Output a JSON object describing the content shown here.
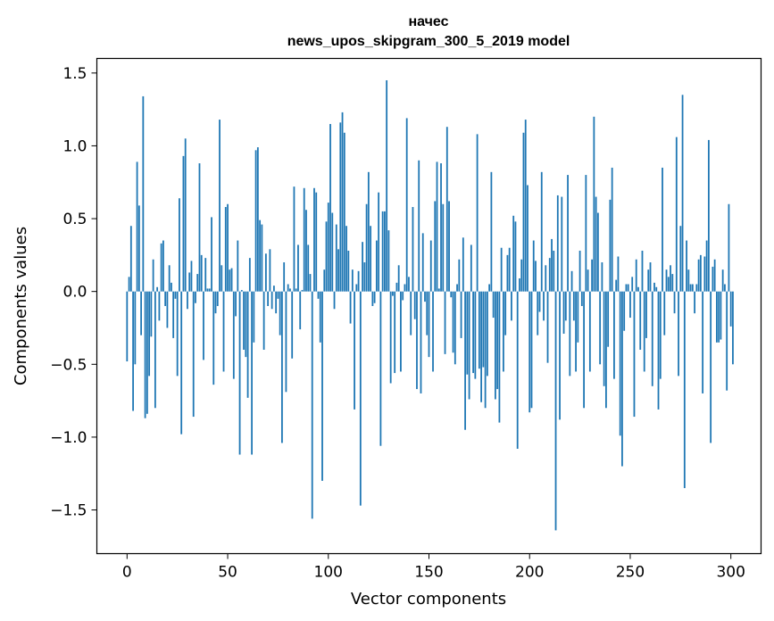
{
  "chart_data": {
    "type": "bar",
    "title": "начес",
    "subtitle": "news_upos_skipgram_300_5_2019 model",
    "xlabel": "Vector components",
    "ylabel": "Components values",
    "xlim": [
      -15,
      315
    ],
    "ylim": [
      -1.8,
      1.6
    ],
    "xticks": [
      0,
      50,
      100,
      150,
      200,
      250,
      300
    ],
    "xtick_labels": [
      "0",
      "50",
      "100",
      "150",
      "200",
      "250",
      "300"
    ],
    "yticks": [
      -1.5,
      -1.0,
      -0.5,
      0.0,
      0.5,
      1.0,
      1.5
    ],
    "ytick_labels": [
      "−1.5",
      "−1.0",
      "−0.5",
      "0.0",
      "0.5",
      "1.0",
      "1.5"
    ],
    "color": "#1f77b4",
    "grid": false,
    "values": [
      -0.48,
      0.1,
      0.45,
      -0.82,
      -0.5,
      0.89,
      0.59,
      -0.3,
      1.34,
      -0.87,
      -0.84,
      -0.58,
      -0.31,
      0.22,
      -0.8,
      0.03,
      -0.2,
      0.33,
      0.35,
      -0.1,
      -0.25,
      0.18,
      0.06,
      -0.32,
      -0.05,
      -0.58,
      0.64,
      -0.98,
      0.93,
      1.05,
      -0.12,
      0.13,
      0.21,
      -0.86,
      -0.08,
      0.12,
      0.88,
      0.25,
      -0.47,
      0.23,
      0.02,
      0.02,
      0.51,
      -0.64,
      -0.15,
      -0.1,
      1.18,
      0.18,
      -0.55,
      0.58,
      0.6,
      0.15,
      0.16,
      -0.6,
      -0.17,
      0.35,
      -1.12,
      0.01,
      -0.4,
      -0.45,
      -0.73,
      0.23,
      -1.12,
      -0.35,
      0.97,
      0.99,
      0.49,
      0.46,
      -0.4,
      0.26,
      -0.1,
      0.29,
      -0.12,
      0.04,
      -0.15,
      -0.05,
      -0.3,
      -1.04,
      0.2,
      -0.69,
      0.05,
      0.02,
      -0.46,
      0.72,
      0.02,
      0.32,
      -0.26,
      0.01,
      0.71,
      0.56,
      0.32,
      0.12,
      -1.56,
      0.71,
      0.68,
      -0.05,
      -0.35,
      -1.3,
      0.15,
      0.48,
      0.61,
      1.15,
      0.54,
      -0.12,
      0.46,
      0.29,
      1.16,
      1.23,
      1.09,
      0.45,
      0.28,
      -0.22,
      0.15,
      -0.81,
      0.05,
      0.14,
      -1.47,
      0.34,
      0.2,
      0.6,
      0.82,
      0.45,
      -0.1,
      -0.08,
      0.35,
      0.68,
      -1.06,
      0.55,
      0.55,
      1.45,
      0.42,
      -0.63,
      -0.03,
      -0.56,
      0.06,
      0.18,
      -0.55,
      -0.06,
      0.05,
      1.19,
      0.1,
      -0.3,
      0.58,
      -0.19,
      -0.67,
      0.9,
      -0.7,
      0.4,
      -0.07,
      -0.3,
      -0.45,
      0.35,
      -0.55,
      0.62,
      0.89,
      0.02,
      0.88,
      0.6,
      -0.43,
      1.13,
      0.62,
      -0.04,
      -0.42,
      -0.5,
      0.05,
      0.22,
      -0.32,
      0.37,
      -0.95,
      -0.57,
      -0.74,
      0.32,
      -0.56,
      -0.6,
      1.08,
      -0.53,
      -0.76,
      -0.52,
      -0.8,
      -0.58,
      0.05,
      0.82,
      -0.18,
      -0.74,
      -0.67,
      -0.9,
      0.3,
      -0.55,
      -0.3,
      0.25,
      0.3,
      -0.2,
      0.52,
      0.48,
      -1.08,
      0.09,
      0.22,
      1.09,
      1.18,
      0.73,
      -0.83,
      -0.8,
      0.35,
      0.21,
      -0.3,
      -0.14,
      0.82,
      -0.2,
      0.18,
      -0.49,
      0.23,
      0.36,
      0.28,
      -1.64,
      0.66,
      -0.88,
      0.65,
      -0.29,
      -0.2,
      0.8,
      -0.58,
      0.14,
      -0.2,
      -0.55,
      -0.35,
      0.28,
      -0.1,
      -0.8,
      0.8,
      0.15,
      -0.55,
      0.22,
      1.2,
      0.65,
      0.54,
      -0.5,
      0.2,
      -0.65,
      -0.8,
      -0.38,
      0.63,
      0.85,
      -0.6,
      0.08,
      0.24,
      -0.99,
      -1.2,
      -0.27,
      0.05,
      0.05,
      -0.18,
      0.1,
      -0.86,
      0.22,
      0.03,
      -0.4,
      0.28,
      -0.55,
      -0.32,
      0.15,
      0.2,
      -0.65,
      0.06,
      0.03,
      -0.81,
      -0.6,
      0.85,
      -0.3,
      0.15,
      0.1,
      0.18,
      0.12,
      -0.15,
      1.06,
      -0.58,
      0.45,
      1.35,
      -1.35,
      0.35,
      0.15,
      0.05,
      0.05,
      -0.15,
      0.05,
      0.22,
      0.25,
      -0.7,
      0.24,
      0.35,
      1.04,
      -1.04,
      0.17,
      0.22,
      -0.35,
      -0.35,
      -0.33,
      0.15,
      0.05,
      -0.68,
      0.6,
      -0.24,
      -0.5
    ]
  }
}
